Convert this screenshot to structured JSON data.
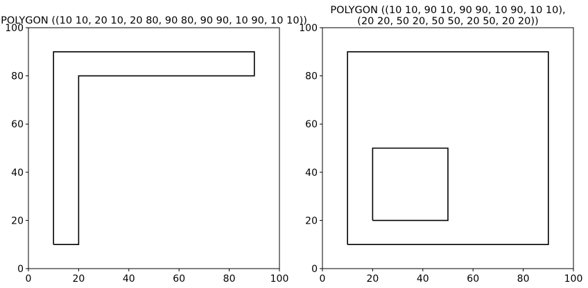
{
  "figure": {
    "panels": [
      {
        "title_lines": [
          "POLYGON ((10 10, 20 10, 20 80, 90 80, 90 90, 10 90, 10 10))"
        ],
        "xlim": [
          0,
          100
        ],
        "ylim": [
          0,
          100
        ],
        "xticks": [
          "0",
          "20",
          "40",
          "60",
          "80",
          "100"
        ],
        "yticks": [
          "0",
          "20",
          "40",
          "60",
          "80",
          "100"
        ]
      },
      {
        "title_lines": [
          "POLYGON ((10 10, 90 10, 90 90, 10 90, 10 10),",
          "(20 20, 50 20, 50 50, 20 50, 20 20))"
        ],
        "xlim": [
          0,
          100
        ],
        "ylim": [
          0,
          100
        ],
        "xticks": [
          "0",
          "20",
          "40",
          "60",
          "80",
          "100"
        ],
        "yticks": [
          "0",
          "20",
          "40",
          "60",
          "80",
          "100"
        ]
      }
    ]
  },
  "chart_data": [
    {
      "type": "line",
      "rings": [
        [
          [
            10,
            10
          ],
          [
            20,
            10
          ],
          [
            20,
            80
          ],
          [
            90,
            80
          ],
          [
            90,
            90
          ],
          [
            10,
            90
          ],
          [
            10,
            10
          ]
        ]
      ],
      "xlim": [
        0,
        100
      ],
      "ylim": [
        0,
        100
      ],
      "line_color": "#000000"
    },
    {
      "type": "line",
      "rings": [
        [
          [
            10,
            10
          ],
          [
            90,
            10
          ],
          [
            90,
            90
          ],
          [
            10,
            90
          ],
          [
            10,
            10
          ]
        ],
        [
          [
            20,
            20
          ],
          [
            50,
            20
          ],
          [
            50,
            50
          ],
          [
            20,
            50
          ],
          [
            20,
            20
          ]
        ]
      ],
      "xlim": [
        0,
        100
      ],
      "ylim": [
        0,
        100
      ],
      "line_color": "#000000"
    }
  ]
}
